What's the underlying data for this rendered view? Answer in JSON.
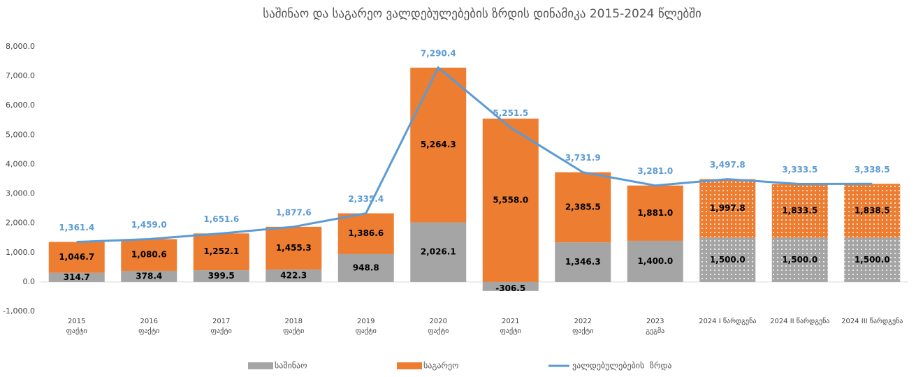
{
  "chart_data": {
    "type": "stacked_bar_line",
    "title": "საშინაო და საგარეო ვალდებულებების ზრდის დინამიკა 2015-2024 წლებში",
    "categories": [
      [
        "2015",
        "ფაქტი"
      ],
      [
        "2016",
        "ფაქტი"
      ],
      [
        "2017",
        "ფაქტი"
      ],
      [
        "2018",
        "ფაქტი"
      ],
      [
        "2019",
        "ფაქტი"
      ],
      [
        "2020",
        "ფაქტი"
      ],
      [
        "2021",
        "ფაქტი"
      ],
      [
        "2022",
        "ფაქტი"
      ],
      [
        "2023",
        "გეგმა"
      ],
      [
        "2024 I წარდგენა"
      ],
      [
        "2024 II წარდგენა"
      ],
      [
        "2024 III წარდგენა"
      ]
    ],
    "dotted": [
      false,
      false,
      false,
      false,
      false,
      false,
      false,
      false,
      false,
      true,
      true,
      true
    ],
    "series": [
      {
        "name": "საშინაო",
        "type": "bar",
        "color": "#a5a5a5",
        "values": [
          314.7,
          378.4,
          399.5,
          422.3,
          948.8,
          2026.1,
          -306.5,
          1346.3,
          1400.0,
          1500.0,
          1500.0,
          1500.0
        ],
        "value_labels": [
          "314.7",
          "378.4",
          "399.5",
          "422.3",
          "948.8",
          "2,026.1",
          "-306.5",
          "1,346.3",
          "1,400.0",
          "1,500.0",
          "1,500.0",
          "1,500.0"
        ]
      },
      {
        "name": "საგარეო",
        "type": "bar",
        "color": "#ed7d31",
        "values": [
          1046.7,
          1080.6,
          1252.1,
          1455.3,
          1386.6,
          5264.3,
          5558.0,
          2385.5,
          1881.0,
          1997.8,
          1833.5,
          1838.5
        ],
        "value_labels": [
          "1,046.7",
          "1,080.6",
          "1,252.1",
          "1,455.3",
          "1,386.6",
          "5,264.3",
          "5,558.0",
          "2,385.5",
          "1,881.0",
          "1,997.8",
          "1,833.5",
          "1,838.5"
        ]
      },
      {
        "name": "ვალდებულებების  ზრდა",
        "type": "line",
        "color": "#5b9bd5",
        "values": [
          1361.4,
          1459.0,
          1651.6,
          1877.6,
          2335.4,
          7290.4,
          5251.5,
          3731.9,
          3281.0,
          3497.8,
          3333.5,
          3338.5
        ],
        "value_labels": [
          "1,361.4",
          "1,459.0",
          "1,651.6",
          "1,877.6",
          "2,335.4",
          "7,290.4",
          "5,251.5",
          "3,731.9",
          "3,281.0",
          "3,497.8",
          "3,333.5",
          "3,338.5"
        ]
      }
    ],
    "ylim": [
      -1000,
      8000
    ],
    "yticks": [
      {
        "value": -1000,
        "label": "-1,000.0"
      },
      {
        "value": 0,
        "label": "0.0"
      },
      {
        "value": 1000,
        "label": "1,000.0"
      },
      {
        "value": 2000,
        "label": "2,000.0"
      },
      {
        "value": 3000,
        "label": "3,000.0"
      },
      {
        "value": 4000,
        "label": "4,000.0"
      },
      {
        "value": 5000,
        "label": "5,000.0"
      },
      {
        "value": 6000,
        "label": "6,000.0"
      },
      {
        "value": 7000,
        "label": "7,000.0"
      },
      {
        "value": 8000,
        "label": "8,000.0"
      }
    ],
    "grid": false,
    "legend": "bottom"
  }
}
